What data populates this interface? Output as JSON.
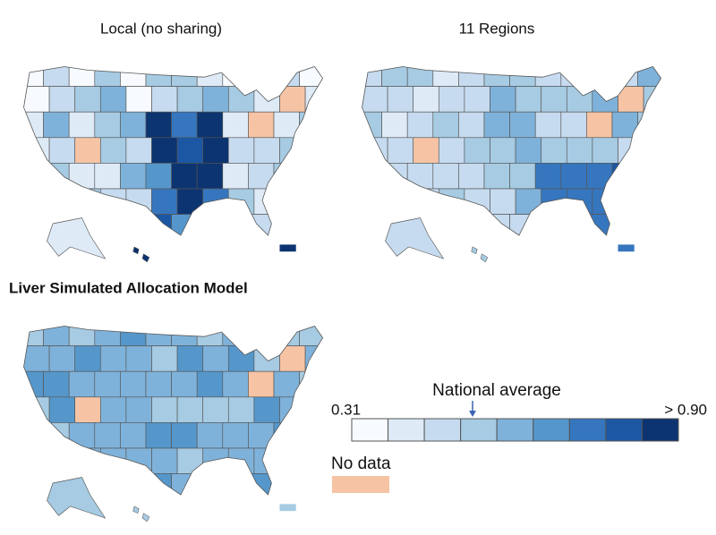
{
  "maps": [
    {
      "title": "Local (no sharing)"
    },
    {
      "title": "11 Regions"
    },
    {
      "title": "Liver Simulated Allocation Model"
    }
  ],
  "legend": {
    "min_label": "0.31",
    "max_label": "> 0.90",
    "marker_label": "National average",
    "colors": [
      "#f7fbff",
      "#deebf7",
      "#c6dbef",
      "#a6cbe3",
      "#7fb2da",
      "#5597cb",
      "#3676be",
      "#1c57a4",
      "#0c3470"
    ],
    "no_data": {
      "label": "No data",
      "color": "#f6c4a4"
    }
  }
}
